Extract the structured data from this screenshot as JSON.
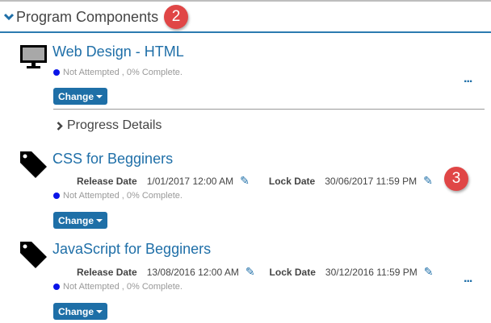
{
  "header": {
    "title": "Program Components",
    "badge": "2"
  },
  "items": [
    {
      "icon": "monitor-icon",
      "title": "Web Design - HTML",
      "status": "Not Attempted , 0% Complete.",
      "change_label": "Change",
      "more": "...",
      "progress_details": "Progress Details"
    },
    {
      "icon": "tag-icon",
      "title": "CSS for Begginers",
      "release_label": "Release Date",
      "release_value": "1/01/2017 12:00 AM",
      "lock_label": "Lock Date",
      "lock_value": "30/06/2017 11:59 PM",
      "status": "Not Attempted , 0% Complete.",
      "change_label": "Change",
      "badge": "3"
    },
    {
      "icon": "tag-icon",
      "title": "JavaScript for Begginers",
      "release_label": "Release Date",
      "release_value": "13/08/2016 12:00 AM",
      "lock_label": "Lock Date",
      "lock_value": "30/12/2016 11:59 PM",
      "status": "Not Attempted , 0% Complete.",
      "change_label": "Change",
      "more": "..."
    }
  ],
  "colors": {
    "accent": "#1f6fa8",
    "badge": "#e04646",
    "status_dot": "#0a14e8"
  }
}
